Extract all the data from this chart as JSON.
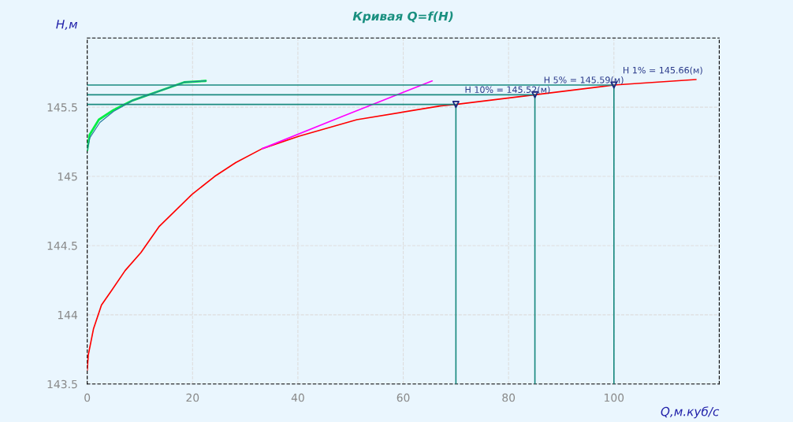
{
  "chart_data": {
    "type": "line",
    "title": "Кривая Q=f(H)",
    "xlabel": "Q,м.куб/с",
    "ylabel": "H,м",
    "xlim": [
      0,
      120
    ],
    "ylim": [
      143.5,
      146
    ],
    "xticks": [
      0,
      20,
      40,
      60,
      80,
      100
    ],
    "yticks": [
      143.5,
      144,
      144.5,
      145,
      145.5
    ],
    "grid": true,
    "series": [
      {
        "color": "#ff0000",
        "x": [
          0,
          0.2,
          1.2,
          2.7,
          4.7,
          7.2,
          10.2,
          13.7,
          19.9,
          24.2,
          28.2,
          33.2,
          40.2,
          51.2,
          67.2,
          70,
          85,
          100,
          115.6
        ],
        "values": [
          143.6,
          143.71,
          143.9,
          144.07,
          144.18,
          144.32,
          144.45,
          144.64,
          144.87,
          145.0,
          145.1,
          145.2,
          145.29,
          145.41,
          145.51,
          145.52,
          145.59,
          145.66,
          145.7
        ]
      },
      {
        "color": "#ff00ff",
        "x": [
          33.2,
          48.2,
          65.5
        ],
        "values": [
          145.2,
          145.43,
          145.69
        ]
      },
      {
        "color": "#00ee44",
        "x": [
          0,
          0.45,
          2.2,
          5,
          8.7,
          13.2,
          18.4,
          22.5
        ],
        "values": [
          145.19,
          145.3,
          145.41,
          145.48,
          145.55,
          145.61,
          145.68,
          145.69
        ]
      },
      {
        "color": "#2a7f9f",
        "x": [
          0,
          0.5,
          2.4,
          5,
          8.7,
          13.2,
          18.4,
          22.5
        ],
        "values": [
          145.19,
          145.28,
          145.39,
          145.47,
          145.55,
          145.61,
          145.68,
          145.69
        ]
      },
      {
        "color": "#1a8a80",
        "x": [
          0,
          70,
          70
        ],
        "values": [
          145.52,
          145.52,
          143.5
        ]
      },
      {
        "color": "#1a8a80",
        "x": [
          0,
          85,
          85
        ],
        "values": [
          145.59,
          145.59,
          143.5
        ]
      },
      {
        "color": "#1a8a80",
        "x": [
          0,
          100,
          100
        ],
        "values": [
          145.66,
          145.66,
          143.5
        ]
      },
      {
        "type": "scatter",
        "marker": "triangle",
        "color": "#1a237e",
        "x": [
          70,
          85,
          100
        ],
        "values": [
          145.52,
          145.59,
          145.66
        ]
      }
    ],
    "annotations": [
      {
        "text": "H 10% = 145.52(м)",
        "x": 70,
        "y": 145.52
      },
      {
        "text": "H 5% = 145.59(м)",
        "x": 85,
        "y": 145.59
      },
      {
        "text": "H 1% = 145.66(м)",
        "x": 100,
        "y": 145.66
      }
    ]
  }
}
